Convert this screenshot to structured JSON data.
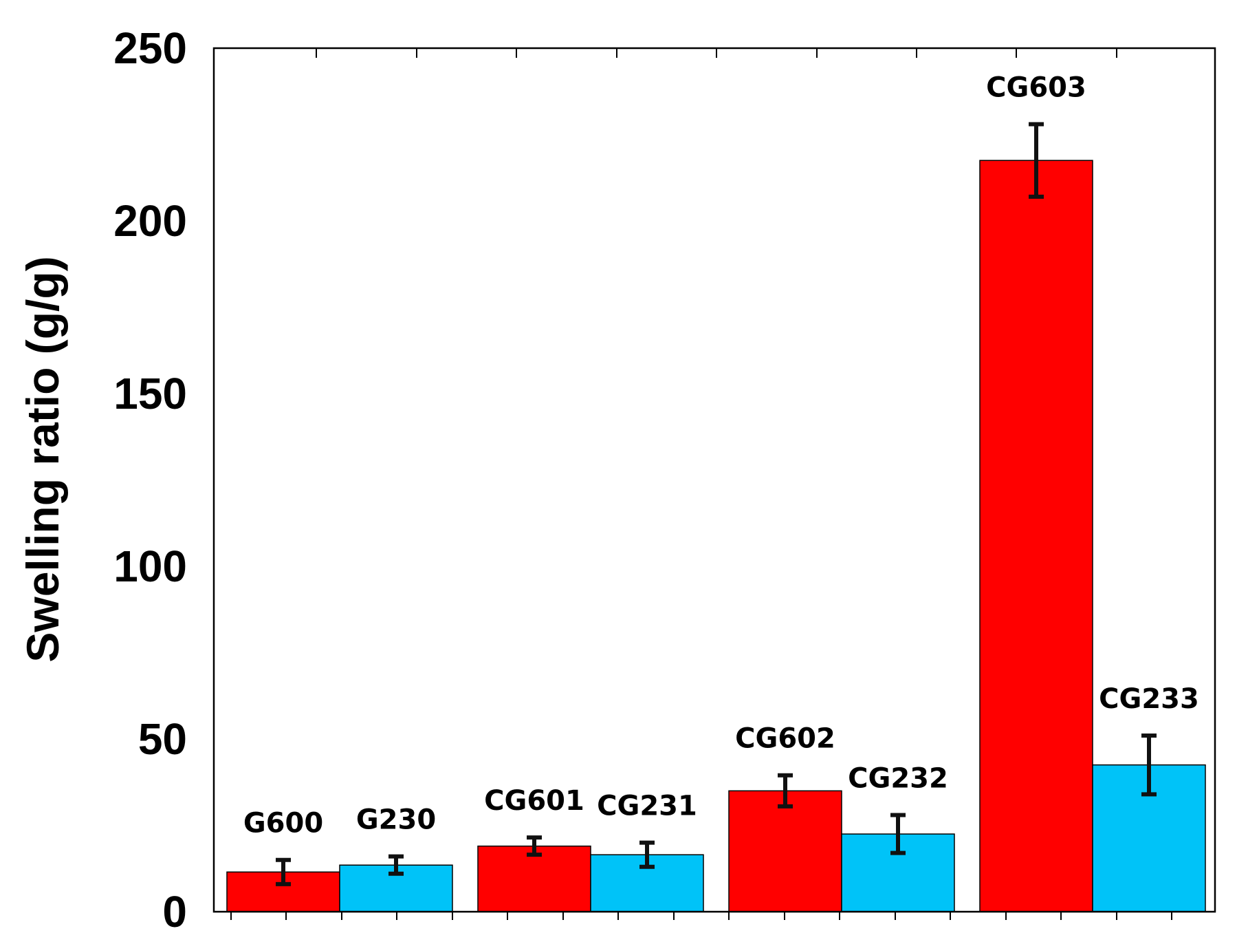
{
  "chart_data": {
    "type": "bar",
    "ylabel": "Swelling ratio  (g/g)",
    "ylim": [
      0,
      250
    ],
    "yticks": [
      0,
      50,
      100,
      150,
      200,
      250
    ],
    "grid": false,
    "colors": {
      "red": "#ff0000",
      "blue": "#00c3f8",
      "error_bar": "#111111",
      "frame": "#000000"
    },
    "groups": [
      {
        "bars": [
          {
            "label": "G600",
            "value": 11.5,
            "error": 3.5,
            "color": "red"
          },
          {
            "label": "G230",
            "value": 13.5,
            "error": 2.5,
            "color": "blue"
          }
        ]
      },
      {
        "bars": [
          {
            "label": "CG601",
            "value": 19,
            "error": 2.5,
            "color": "red"
          },
          {
            "label": "CG231",
            "value": 16.5,
            "error": 3.5,
            "color": "blue"
          }
        ]
      },
      {
        "bars": [
          {
            "label": "CG602",
            "value": 35,
            "error": 4.5,
            "color": "red"
          },
          {
            "label": "CG232",
            "value": 22.5,
            "error": 5.5,
            "color": "blue"
          }
        ]
      },
      {
        "bars": [
          {
            "label": "CG603",
            "value": 217.5,
            "error": 10.5,
            "color": "red"
          },
          {
            "label": "CG233",
            "value": 42.5,
            "error": 8.5,
            "color": "blue"
          }
        ]
      }
    ]
  }
}
